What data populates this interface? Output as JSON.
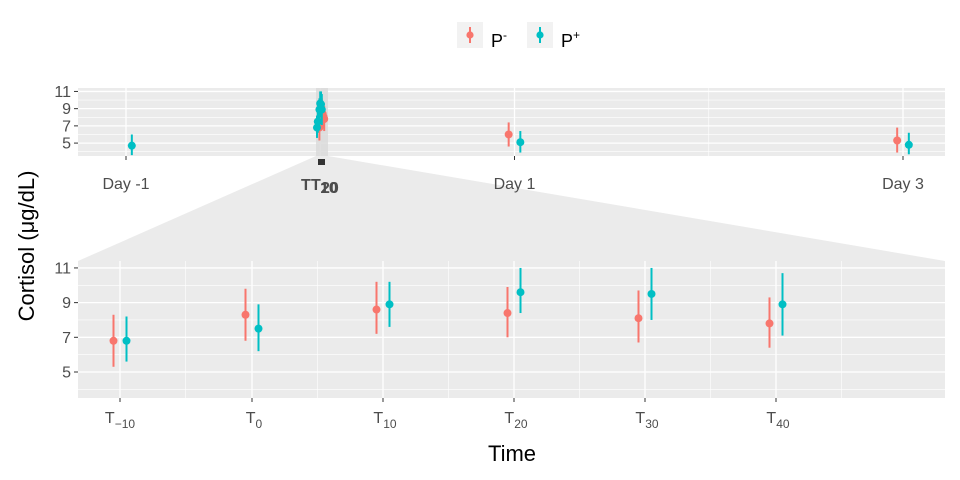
{
  "chart_data": {
    "type": "scatter",
    "subtype": "point-range with magnified inset (ggforce facet_zoom)",
    "xlabel": "Time",
    "ylabel": "Cortisol (μg/dL)",
    "legend": {
      "placement": "top",
      "entries": [
        {
          "base": "P",
          "sup": "-",
          "color": "#F8766D"
        },
        {
          "base": "P",
          "sup": "+",
          "color": "#00BFC4"
        }
      ]
    },
    "colors": {
      "P_minus": "#F8766D",
      "P_plus": "#00BFC4",
      "panel_bg": "#EBEBEB",
      "grid": "#FFFFFF"
    },
    "overview": {
      "yticks": [
        5,
        7,
        9,
        11
      ],
      "ylim": [
        3.5,
        11.4
      ],
      "xticks": [
        {
          "label": "Day -1",
          "x": -1
        },
        {
          "label": "Day 1",
          "x": 1
        },
        {
          "label": "Day 3",
          "x": 3
        }
      ],
      "zoom_tick_labels": [
        "T",
        "10",
        "20"
      ],
      "series": [
        {
          "name": "P-",
          "color": "#F8766D",
          "points": [
            {
              "x": 0.03,
              "y": 6.8,
              "lo": 5.3,
              "hi": 8.3
            },
            {
              "x": 0.05,
              "y": 8.3,
              "lo": 6.8,
              "hi": 9.8
            },
            {
              "x": 0.06,
              "y": 8.6,
              "lo": 7.2,
              "hi": 10.2
            },
            {
              "x": 0.07,
              "y": 8.4,
              "lo": 7.0,
              "hi": 9.9
            },
            {
              "x": 0.08,
              "y": 8.1,
              "lo": 6.7,
              "hi": 9.7
            },
            {
              "x": 0.09,
              "y": 7.8,
              "lo": 6.4,
              "hi": 9.3
            },
            {
              "x": 0.97,
              "y": 6.0,
              "lo": 4.6,
              "hi": 7.4
            },
            {
              "x": 2.97,
              "y": 5.3,
              "lo": 3.9,
              "hi": 6.8
            }
          ]
        },
        {
          "name": "P+",
          "color": "#00BFC4",
          "points": [
            {
              "x": -0.97,
              "y": 4.7,
              "lo": 3.6,
              "hi": 6.0
            },
            {
              "x": 0.0,
              "y": 6.8,
              "lo": 5.6,
              "hi": 8.2
            },
            {
              "x": 0.01,
              "y": 7.5,
              "lo": 6.2,
              "hi": 8.9
            },
            {
              "x": 0.03,
              "y": 8.9,
              "lo": 7.6,
              "hi": 10.2
            },
            {
              "x": 0.04,
              "y": 9.6,
              "lo": 8.4,
              "hi": 11.0
            },
            {
              "x": 0.05,
              "y": 9.5,
              "lo": 8.0,
              "hi": 11.0
            },
            {
              "x": 0.06,
              "y": 8.9,
              "lo": 7.1,
              "hi": 10.7
            },
            {
              "x": 1.03,
              "y": 5.1,
              "lo": 3.9,
              "hi": 6.4
            },
            {
              "x": 3.03,
              "y": 4.8,
              "lo": 3.7,
              "hi": 6.2
            }
          ]
        }
      ]
    },
    "zoom": {
      "yticks": [
        5,
        7,
        9,
        11
      ],
      "ylim": [
        3.5,
        11.4
      ],
      "categories": [
        {
          "base": "T",
          "sub": "−10"
        },
        {
          "base": "T",
          "sub": "0"
        },
        {
          "base": "T",
          "sub": "10"
        },
        {
          "base": "T",
          "sub": "20"
        },
        {
          "base": "T",
          "sub": "30"
        },
        {
          "base": "T",
          "sub": "40"
        }
      ],
      "series": [
        {
          "name": "P-",
          "color": "#F8766D",
          "y": [
            6.8,
            8.3,
            8.6,
            8.4,
            8.1,
            7.8
          ],
          "lo": [
            5.3,
            6.8,
            7.2,
            7.0,
            6.7,
            6.4
          ],
          "hi": [
            8.3,
            9.8,
            10.2,
            9.9,
            9.7,
            9.3
          ]
        },
        {
          "name": "P+",
          "color": "#00BFC4",
          "y": [
            6.8,
            7.5,
            8.9,
            9.6,
            9.5,
            8.9
          ],
          "lo": [
            5.6,
            6.2,
            7.6,
            8.4,
            8.0,
            7.1
          ],
          "hi": [
            8.2,
            8.9,
            10.2,
            11.0,
            11.0,
            10.7
          ]
        }
      ]
    }
  }
}
